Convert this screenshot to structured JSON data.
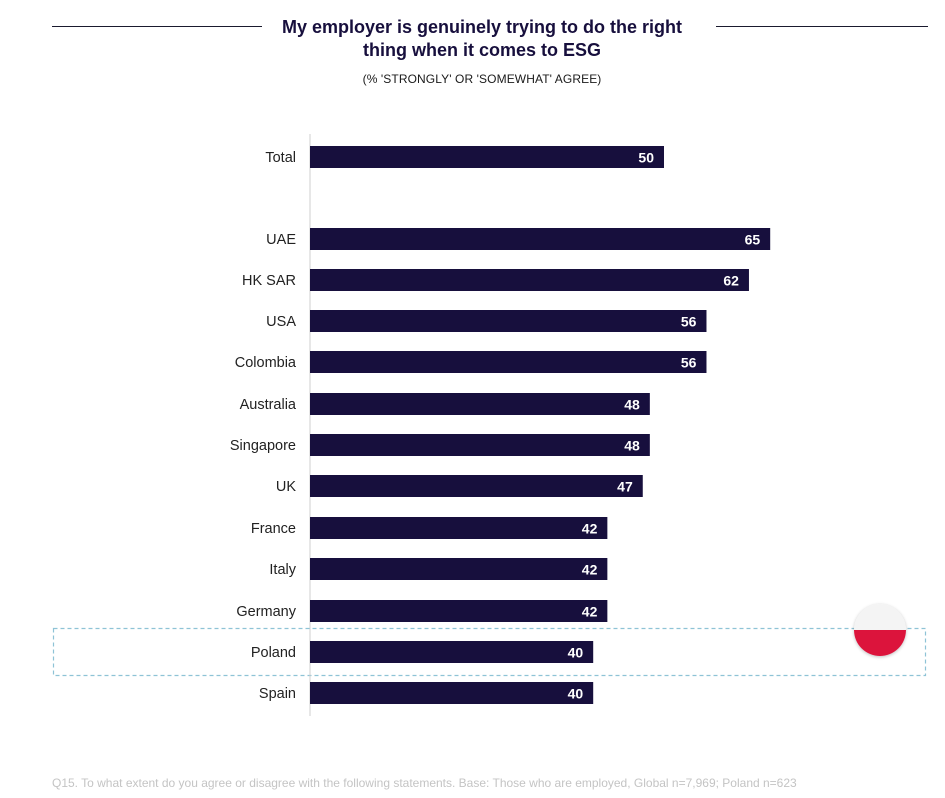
{
  "chart_data": {
    "type": "bar",
    "orientation": "horizontal",
    "title": "My employer is genuinely trying to do the right thing when it comes to ESG",
    "subtitle": "(% 'STRONGLY' OR 'SOMEWHAT' AGREE)",
    "categories": [
      "Total",
      "UAE",
      "HK SAR",
      "USA",
      "Colombia",
      "Australia",
      "Singapore",
      "UK",
      "France",
      "Italy",
      "Germany",
      "Poland",
      "Spain"
    ],
    "values": [
      50,
      65,
      62,
      56,
      56,
      48,
      48,
      47,
      42,
      42,
      42,
      40,
      40
    ],
    "highlighted_category": "Poland",
    "xlim": [
      0,
      70
    ],
    "bar_color": "#170f3d",
    "label_color": "#ffffff",
    "highlight_border_color": "#8ec3d6",
    "xlabel": "",
    "ylabel": ""
  },
  "header": {
    "title_line1": "My employer is genuinely trying to do the right",
    "title_line2": "thing when it comes to ESG",
    "subtitle": "(% 'STRONGLY' OR 'SOMEWHAT' AGREE)"
  },
  "footnote": "Q15. To what extent do you agree or disagree with the following statements. Base: Those who are employed, Global n=7,969; Poland n=623",
  "flag": {
    "icon": "poland-flag-icon",
    "top_color": "#f4f4f4",
    "bottom_color": "#dc143c"
  }
}
